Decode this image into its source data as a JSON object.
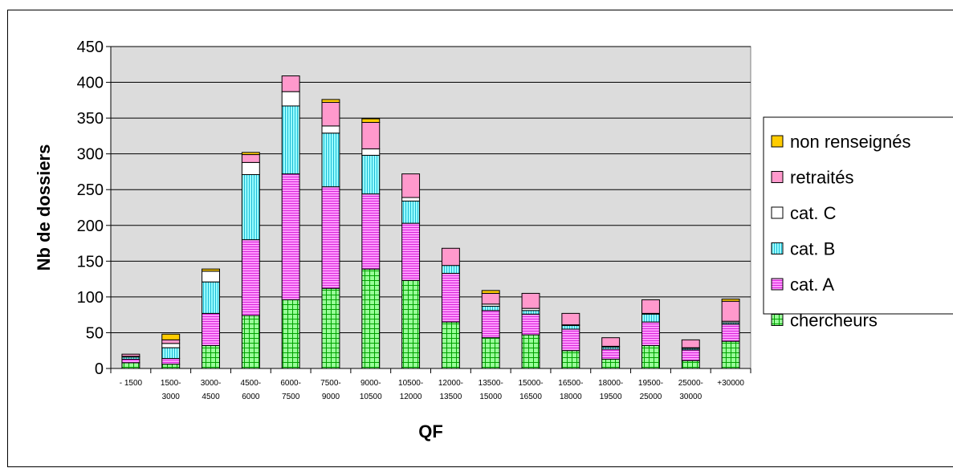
{
  "chart_data": {
    "type": "bar",
    "stacked": true,
    "xlabel": "QF",
    "ylabel": "Nb de dossiers",
    "ylim": [
      0,
      450
    ],
    "ytick_step": 50,
    "yticks": [
      "0",
      "50",
      "100",
      "150",
      "200",
      "250",
      "300",
      "350",
      "400",
      "450"
    ],
    "grid": true,
    "legend_position": "right",
    "categories": [
      [
        "- 1500"
      ],
      [
        "1500-",
        "3000"
      ],
      [
        "3000-",
        "4500"
      ],
      [
        "4500-",
        "6000"
      ],
      [
        "6000-",
        "7500"
      ],
      [
        "7500-",
        "9000"
      ],
      [
        "9000-",
        "10500"
      ],
      [
        "10500-",
        "12000"
      ],
      [
        "12000-",
        "13500"
      ],
      [
        "13500-",
        "15000"
      ],
      [
        "15000-",
        "16500"
      ],
      [
        "16500-",
        "18000"
      ],
      [
        "18000-",
        "19500"
      ],
      [
        "19500-",
        "25000"
      ],
      [
        "25000-",
        "30000"
      ],
      [
        "+30000"
      ]
    ],
    "series": [
      {
        "name": "chercheurs",
        "color": "#99ff99",
        "pattern": "grid",
        "values": [
          8,
          6,
          32,
          74,
          96,
          112,
          139,
          123,
          65,
          43,
          47,
          25,
          13,
          32,
          11,
          38
        ]
      },
      {
        "name": "cat. A",
        "color": "#ff99ff",
        "pattern": "hlines",
        "values": [
          5,
          8,
          45,
          106,
          176,
          142,
          105,
          80,
          68,
          38,
          29,
          30,
          14,
          33,
          15,
          24
        ]
      },
      {
        "name": "cat. B",
        "color": "#99ffff",
        "pattern": "vlines",
        "values": [
          3,
          15,
          44,
          91,
          95,
          75,
          54,
          31,
          11,
          6,
          5,
          5,
          3,
          11,
          2,
          2
        ]
      },
      {
        "name": "cat. C",
        "color": "#ffffff",
        "pattern": "none",
        "values": [
          1,
          6,
          15,
          17,
          20,
          10,
          9,
          5,
          0,
          3,
          3,
          1,
          1,
          1,
          1,
          2
        ]
      },
      {
        "name": "retraités",
        "color": "#ff99cc",
        "pattern": "none",
        "values": [
          3,
          5,
          0,
          11,
          22,
          33,
          37,
          33,
          24,
          15,
          21,
          16,
          12,
          19,
          11,
          28
        ]
      },
      {
        "name": "non renseignés",
        "color": "#ffcc00",
        "pattern": "none",
        "values": [
          0,
          8,
          3,
          3,
          0,
          4,
          5,
          0,
          0,
          4,
          0,
          0,
          0,
          0,
          0,
          3
        ]
      }
    ]
  }
}
